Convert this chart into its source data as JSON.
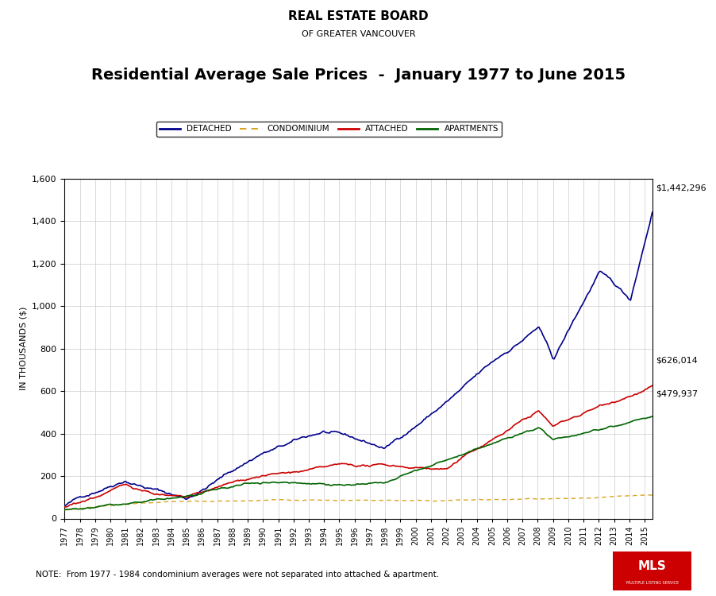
{
  "title": "Residential Average Sale Prices  -  January 1977 to June 2015",
  "ylabel": "IN THOUSANDS ($)",
  "note": "NOTE:  From 1977 - 1984 condominium averages were not separated into attached & apartment.",
  "ylim": [
    0,
    1600
  ],
  "yticks": [
    0,
    200,
    400,
    600,
    800,
    1000,
    1200,
    1400,
    1600
  ],
  "final_values": {
    "detached": "$1,442,296",
    "attached": "$626,014",
    "apartments": "$479,937"
  },
  "colors": {
    "detached": "#00008B",
    "condominium": "#DAA520",
    "attached": "#CC0000",
    "apartments": "#006400",
    "background": "#FFFFFF",
    "grid": "#CCCCCC"
  },
  "legend_labels": [
    "DETACHED",
    "CONDOMINIUM",
    "ATTACHED",
    "APARTMENTS"
  ],
  "logo_line1": "REAL ESTATE BOARD",
  "logo_line2": "OF GREATER VANCOUVER"
}
